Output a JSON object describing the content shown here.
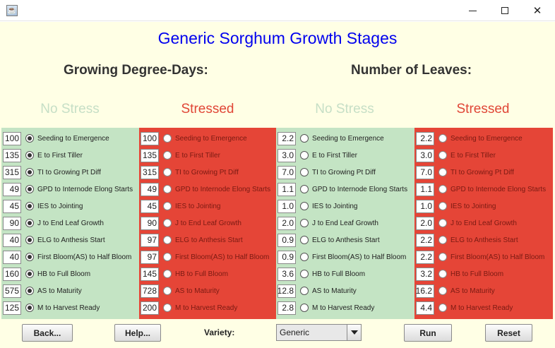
{
  "window": {
    "title": ""
  },
  "title": "Generic Sorghum Growth Stages",
  "sections": {
    "gdd": "Growing Degree-Days:",
    "leaves": "Number of Leaves:"
  },
  "column_headers": {
    "no_stress": "No Stress",
    "stressed": "Stressed"
  },
  "stages": [
    "Seeding to Emergence",
    "E to First Tiller",
    "TI to Growing Pt Diff",
    "GPD to Internode Elong Starts",
    "IES to Jointing",
    "J to End Leaf Growth",
    "ELG to Anthesis Start",
    "First Bloom(AS) to Half Bloom",
    "HB to Full Bloom",
    "AS to Maturity",
    "M to Harvest Ready"
  ],
  "panels": [
    {
      "id": "gdd-no-stress",
      "values": [
        "100",
        "135",
        "315",
        "49",
        "45",
        "90",
        "40",
        "40",
        "160",
        "575",
        "125"
      ]
    },
    {
      "id": "gdd-stressed",
      "values": [
        "100",
        "135",
        "315",
        "49",
        "45",
        "90",
        "97",
        "97",
        "145",
        "728",
        "200"
      ]
    },
    {
      "id": "leaves-no-stress",
      "values": [
        "2.2",
        "3.0",
        "7.0",
        "1.1",
        "1.0",
        "2.0",
        "0.9",
        "0.9",
        "3.6",
        "12.8",
        "2.8"
      ]
    },
    {
      "id": "leaves-stressed",
      "values": [
        "2.2",
        "3.0",
        "7.0",
        "1.1",
        "1.0",
        "2.0",
        "2.2",
        "2.2",
        "3.2",
        "16.2",
        "4.4"
      ]
    }
  ],
  "buttons": {
    "back": "Back...",
    "help": "Help...",
    "run": "Run",
    "reset": "Reset"
  },
  "variety": {
    "label": "Variety:",
    "selected": "Generic"
  },
  "colors": {
    "no_stress_bg": "#c4e4c4",
    "stressed_bg": "#e54537",
    "title": "#0000ee",
    "background": "#ffffe5"
  }
}
